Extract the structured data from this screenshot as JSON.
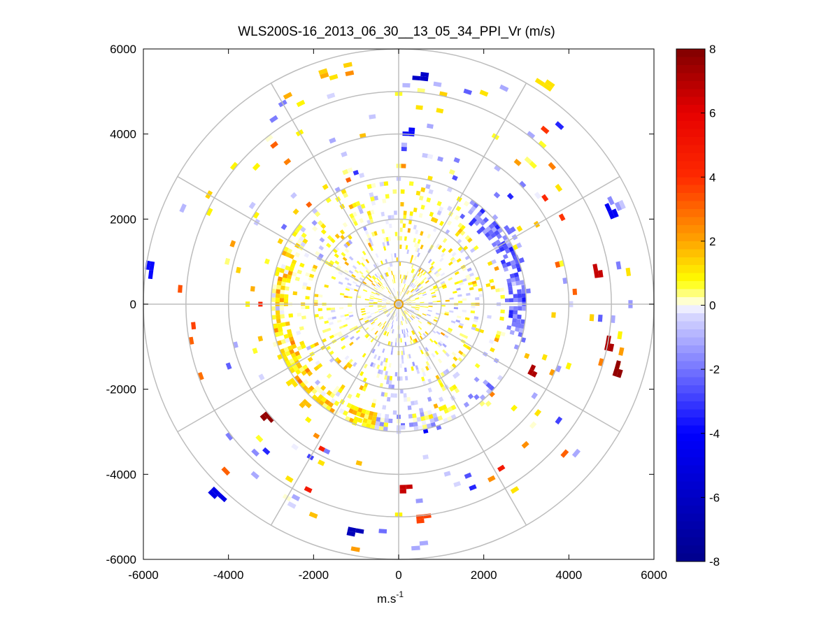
{
  "chart_data": {
    "type": "heatmap",
    "subtype": "polar-ppi",
    "title": "WLS200S-16_2013_06_30__13_05_34_PPI_Vr (m/s)",
    "xlabel": "m.s",
    "xlabel_superscript": "-1",
    "ylabel": "",
    "xlim": [
      -6000,
      6000
    ],
    "ylim": [
      -6000,
      6000
    ],
    "x_ticks": [
      -6000,
      -4000,
      -2000,
      0,
      2000,
      4000,
      6000
    ],
    "y_ticks": [
      -6000,
      -4000,
      -2000,
      0,
      2000,
      4000,
      6000
    ],
    "polar_grid": {
      "range_rings_m": [
        1000,
        2000,
        3000,
        4000,
        5000,
        6000
      ],
      "azimuth_step_deg": 30,
      "max_range_m": 6000
    },
    "colorbar": {
      "range": [
        -8,
        8
      ],
      "ticks": [
        -8,
        -6,
        -4,
        -2,
        0,
        2,
        4,
        6,
        8
      ],
      "levels": 64,
      "colormap": "blue-white-yellow-red",
      "stops": [
        {
          "value": -8,
          "color": "#00008b"
        },
        {
          "value": -4,
          "color": "#0000ff"
        },
        {
          "value": -0.25,
          "color": "#dcdcff"
        },
        {
          "value": 0,
          "color": "#ffffff"
        },
        {
          "value": 0.25,
          "color": "#ffffa0"
        },
        {
          "value": 0.75,
          "color": "#ffff00"
        },
        {
          "value": 2,
          "color": "#ffa500"
        },
        {
          "value": 4,
          "color": "#ff2a00"
        },
        {
          "value": 6,
          "color": "#e60000"
        },
        {
          "value": 8,
          "color": "#800000"
        }
      ]
    },
    "data_summary": {
      "units": "radial velocity (m/s)",
      "range_gate_m": 100,
      "azimuth_step_deg": 2,
      "notes": "Dense returns within ~3000 m; sparse gates beyond. West/south-west sector mostly +0.5..+1.5 m/s, east sector (~2700-3000 m) -1..-3 m/s, scattered strong positives (+4..+8) to the east/south-east."
    },
    "sample_cells": [
      {
        "x": -2800,
        "y": -500,
        "v": 0.8
      },
      {
        "x": -2700,
        "y": -1200,
        "v": 1.0
      },
      {
        "x": -2500,
        "y": -1800,
        "v": 1.2
      },
      {
        "x": -2200,
        "y": -2300,
        "v": 1.5
      },
      {
        "x": -1000,
        "y": -2700,
        "v": 0.9
      },
      {
        "x": 0,
        "y": -2900,
        "v": -0.5
      },
      {
        "x": 2950,
        "y": 300,
        "v": -2.0
      },
      {
        "x": 2800,
        "y": 1000,
        "v": -2.5
      },
      {
        "x": 2600,
        "y": 1700,
        "v": -2.2
      },
      {
        "x": 2800,
        "y": -500,
        "v": -1.8
      },
      {
        "x": 3100,
        "y": -1600,
        "v": 7.0
      },
      {
        "x": 5100,
        "y": -1600,
        "v": 7.5
      },
      {
        "x": 4900,
        "y": -1000,
        "v": 7.0
      },
      {
        "x": 4650,
        "y": 700,
        "v": 6.5
      },
      {
        "x": 600,
        "y": 5300,
        "v": -6.0
      },
      {
        "x": 300,
        "y": 4000,
        "v": -4.0
      },
      {
        "x": 100,
        "y": -4300,
        "v": 6.5
      },
      {
        "x": 500,
        "y": -5000,
        "v": 3.5
      },
      {
        "x": -1100,
        "y": -5300,
        "v": -6.5
      },
      {
        "x": -3100,
        "y": -2600,
        "v": 7.5
      },
      {
        "x": -4300,
        "y": -4400,
        "v": -5.0
      },
      {
        "x": -5800,
        "y": 900,
        "v": -4.0
      },
      {
        "x": 5000,
        "y": 2100,
        "v": -4.5
      },
      {
        "x": 3500,
        "y": 5100,
        "v": 1.0
      }
    ]
  }
}
